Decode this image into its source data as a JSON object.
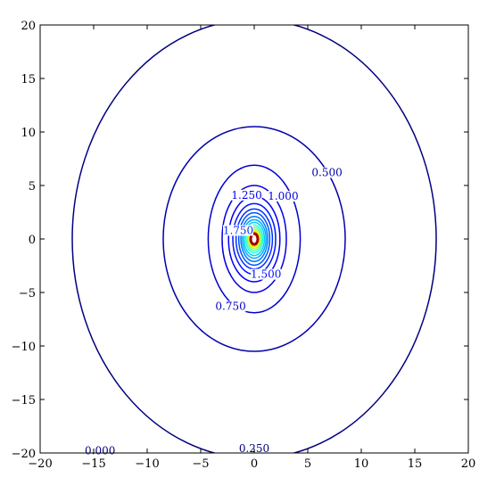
{
  "chart_data": {
    "type": "contour",
    "title": "",
    "xlabel": "",
    "ylabel": "",
    "xlim": [
      -20,
      20
    ],
    "ylim": [
      -20,
      20
    ],
    "x_ticks": [
      -20,
      -15,
      -10,
      -5,
      0,
      5,
      10,
      15,
      20
    ],
    "y_ticks": [
      -20,
      -15,
      -10,
      -5,
      0,
      5,
      10,
      15,
      20
    ],
    "x_tick_labels": [
      "−20",
      "−15",
      "−10",
      "−5",
      "0",
      "5",
      "10",
      "15",
      "20"
    ],
    "y_tick_labels": [
      "−20",
      "−15",
      "−10",
      "−5",
      "0",
      "5",
      "10",
      "15",
      "20"
    ],
    "grid": false,
    "colormap": "jet",
    "levels": [
      {
        "value": 0.25,
        "a": 17.0,
        "b": 20.5,
        "color": "#000080",
        "label": "0.250",
        "label_at": [
          0,
          -19.6
        ]
      },
      {
        "value": 0.5,
        "a": 8.5,
        "b": 10.5,
        "color": "#0000a8",
        "label": "0.500",
        "label_at": [
          6.8,
          6.2
        ]
      },
      {
        "value": 0.75,
        "a": 4.3,
        "b": 6.9,
        "color": "#0000cc",
        "label": "0.750",
        "label_at": [
          -2.2,
          -6.3
        ]
      },
      {
        "value": 1.0,
        "a": 3.0,
        "b": 5.0,
        "color": "#0000e0",
        "label": "1.000",
        "label_at": [
          2.7,
          4.0
        ]
      },
      {
        "value": 1.25,
        "a": 2.4,
        "b": 4.0,
        "color": "#0000f5",
        "label": "1.250",
        "label_at": [
          -0.7,
          4.1
        ]
      },
      {
        "value": 1.5,
        "a": 2.0,
        "b": 3.3,
        "color": "#0010ff",
        "label": "1.500",
        "label_at": [
          1.1,
          -3.3
        ]
      },
      {
        "value": 1.75,
        "a": 1.7,
        "b": 2.8,
        "color": "#0030ff",
        "label": "1.750",
        "label_at": [
          -1.5,
          0.8
        ]
      },
      {
        "value": 2.0,
        "a": 1.45,
        "b": 2.45,
        "color": "#0050ff",
        "label": "",
        "label_at": null
      },
      {
        "value": 2.25,
        "a": 1.25,
        "b": 2.1,
        "color": "#0080ff",
        "label": "",
        "label_at": null
      },
      {
        "value": 2.5,
        "a": 1.1,
        "b": 1.8,
        "color": "#00a8ff",
        "label": "",
        "label_at": null
      },
      {
        "value": 2.75,
        "a": 0.95,
        "b": 1.55,
        "color": "#00d0ff",
        "label": "",
        "label_at": null
      },
      {
        "value": 3.0,
        "a": 0.8,
        "b": 1.3,
        "color": "#20ffdf",
        "label": "",
        "label_at": null
      },
      {
        "value": 3.25,
        "a": 0.68,
        "b": 1.1,
        "color": "#60ff9f",
        "label": "",
        "label_at": null
      },
      {
        "value": 3.5,
        "a": 0.58,
        "b": 0.92,
        "color": "#a0ff60",
        "label": "",
        "label_at": null
      },
      {
        "value": 3.75,
        "a": 0.5,
        "b": 0.78,
        "color": "#e0ff20",
        "label": "",
        "label_at": null
      },
      {
        "value": 4.0,
        "a": 0.43,
        "b": 0.66,
        "color": "#ffd000",
        "label": "",
        "label_at": null
      },
      {
        "value": 4.25,
        "a": 0.37,
        "b": 0.56,
        "color": "#ff9000",
        "label": "",
        "label_at": null
      },
      {
        "value": 4.5,
        "a": 0.32,
        "b": 0.48,
        "color": "#ff5000",
        "label": "",
        "label_at": null
      },
      {
        "value": 4.75,
        "a": 0.28,
        "b": 0.42,
        "color": "#f01000",
        "label": "",
        "label_at": null
      },
      {
        "value": 5.0,
        "a": 0.25,
        "b": 0.37,
        "color": "#c00000",
        "label": "",
        "label_at": null
      },
      {
        "value": 5.25,
        "a": 0.22,
        "b": 0.33,
        "color": "#800000",
        "label": "",
        "label_at": null
      }
    ],
    "extra_labels": [
      {
        "text": "0.000",
        "at": [
          -14.4,
          -19.8
        ],
        "color": "#000080"
      }
    ]
  }
}
